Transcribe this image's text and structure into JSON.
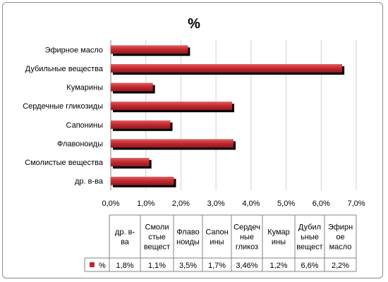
{
  "chart_data": {
    "type": "bar",
    "orientation": "horizontal",
    "title": "%",
    "categories": [
      "Эфирное масло",
      "Дубильные вещества",
      "Кумарины",
      "Сердечные гликозиды",
      "Сапонины",
      "Флавоноиды",
      "Смолистые вещества",
      "др. в-ва"
    ],
    "series": [
      {
        "name": "%",
        "color": "#c0282d",
        "values": [
          2.2,
          6.6,
          1.2,
          3.46,
          1.7,
          3.5,
          1.1,
          1.8
        ]
      }
    ],
    "xlim": [
      0,
      7
    ],
    "xticks": [
      "0,0%",
      "1,0%",
      "2,0%",
      "3,0%",
      "4,0%",
      "5,0%",
      "6,0%",
      "7,0%"
    ],
    "gridlines": true,
    "legend": "data-table",
    "data_table": {
      "headers": [
        [
          "др. в-",
          "ва"
        ],
        [
          "Смоли",
          "стые",
          "вещест"
        ],
        [
          "Флаво",
          "ноиды"
        ],
        [
          "Сапон",
          "ины"
        ],
        [
          "Сердеч",
          "ные",
          "гликоз"
        ],
        [
          "Кумар",
          "ины"
        ],
        [
          "Дубил",
          "ьные",
          "вещест"
        ],
        [
          "Эфирн",
          "ое",
          "масло"
        ]
      ],
      "row_label": "%",
      "values": [
        "1,8%",
        "1,1%",
        "3,5%",
        "1,7%",
        "3,46%",
        "1,2%",
        "6,6%",
        "2,2%"
      ]
    }
  }
}
